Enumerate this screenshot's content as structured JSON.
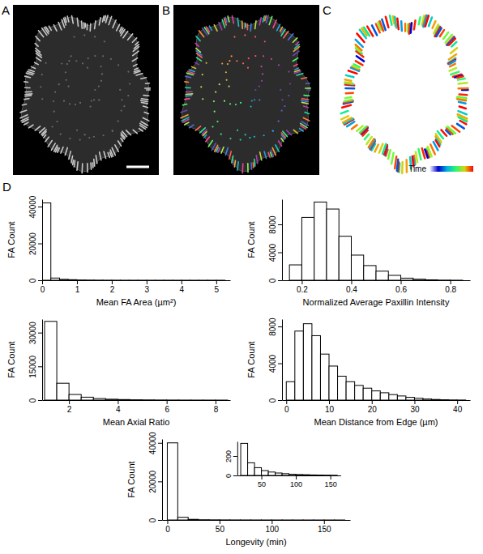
{
  "panels": [
    {
      "label": "A"
    },
    {
      "label": "B"
    },
    {
      "label": "C",
      "colorbar_title": "Time"
    },
    {
      "label": "D"
    }
  ],
  "chart_data": [
    {
      "type": "histogram",
      "x_label": "Mean FA Area (µm²)",
      "y_label": "FA Count",
      "color": "#ffffff",
      "bins": [
        0,
        0.25,
        0.5,
        0.75,
        1,
        1.25,
        1.5,
        1.75,
        2,
        2.25,
        2.5,
        2.75,
        3,
        3.25,
        3.5,
        3.75,
        4,
        4.25,
        4.5,
        4.75,
        5,
        5.25
      ],
      "values": [
        42000,
        1200,
        500,
        300,
        150,
        100,
        60,
        40,
        30,
        20,
        15,
        10,
        8,
        5,
        4,
        3,
        2,
        2,
        1,
        1,
        1
      ],
      "xlim": [
        0,
        5.4
      ],
      "ylim": [
        0,
        44000
      ],
      "xticks": [
        0,
        1,
        2,
        3,
        4,
        5
      ],
      "yticks": [
        0,
        20000,
        40000
      ]
    },
    {
      "type": "histogram",
      "x_label": "Normalized Average Paxillin Intensity",
      "y_label": "FA Count",
      "color": "#ffffff",
      "bins": [
        0.15,
        0.2,
        0.25,
        0.3,
        0.35,
        0.4,
        0.45,
        0.5,
        0.55,
        0.6,
        0.65,
        0.7,
        0.75,
        0.8,
        0.85
      ],
      "values": [
        2200,
        9000,
        11200,
        10200,
        6300,
        3600,
        2100,
        1300,
        700,
        300,
        150,
        60,
        20,
        5
      ],
      "xlim": [
        0.12,
        0.88
      ],
      "ylim": [
        0,
        11600
      ],
      "xticks": [
        0.2,
        0.4,
        0.6,
        0.8
      ],
      "yticks": [
        0,
        4000,
        8000
      ]
    },
    {
      "type": "histogram",
      "x_label": "Mean Axial Ratio",
      "y_label": "FA Count",
      "color": "#ffffff",
      "bins": [
        1,
        1.5,
        2,
        2.5,
        3,
        3.5,
        4,
        4.5,
        5,
        5.5,
        6,
        6.5,
        7,
        7.5,
        8,
        8.5
      ],
      "values": [
        35000,
        7500,
        2500,
        1300,
        700,
        400,
        250,
        150,
        100,
        60,
        40,
        25,
        15,
        10,
        6
      ],
      "xlim": [
        0.9,
        8.6
      ],
      "ylim": [
        0,
        36000
      ],
      "xticks": [
        2,
        4,
        6,
        8
      ],
      "yticks": [
        0,
        15000,
        30000
      ]
    },
    {
      "type": "histogram",
      "x_label": "Mean Distance from Edge (µm)",
      "y_label": "FA Count",
      "color": "#ffffff",
      "bins": [
        0,
        2,
        4,
        6,
        8,
        10,
        12,
        14,
        16,
        18,
        20,
        22,
        24,
        26,
        28,
        30,
        32,
        34,
        36,
        38,
        40,
        42
      ],
      "values": [
        2000,
        7500,
        8300,
        7000,
        5000,
        3700,
        2600,
        2000,
        1600,
        1300,
        1000,
        800,
        600,
        450,
        300,
        200,
        120,
        70,
        40,
        20,
        10
      ],
      "xlim": [
        -1,
        43
      ],
      "ylim": [
        0,
        8800
      ],
      "xticks": [
        0,
        10,
        20,
        30,
        40
      ],
      "yticks": [
        0,
        4000,
        8000
      ]
    },
    {
      "type": "histogram",
      "x_label": "Longevity (min)",
      "y_label": "FA Count",
      "color": "#ffffff",
      "bins": [
        0,
        10,
        20,
        30,
        40,
        50,
        60,
        70,
        80,
        90,
        100,
        110,
        120,
        130,
        140,
        150,
        160,
        170
      ],
      "values": [
        40000,
        1400,
        330,
        130,
        80,
        50,
        35,
        25,
        18,
        12,
        9,
        7,
        5,
        4,
        3,
        2,
        1
      ],
      "xlim": [
        -5,
        175
      ],
      "ylim": [
        0,
        42000
      ],
      "xticks": [
        0,
        50,
        100,
        150
      ],
      "yticks": [
        0,
        20000,
        40000
      ],
      "inset": {
        "type": "histogram",
        "color": "#ffffff",
        "bins": [
          20,
          30,
          40,
          50,
          60,
          70,
          80,
          90,
          100,
          110,
          120,
          130,
          140,
          150,
          160
        ],
        "values": [
          330,
          130,
          80,
          50,
          35,
          25,
          18,
          12,
          9,
          7,
          5,
          4,
          3,
          2
        ],
        "xlim": [
          15,
          165
        ],
        "ylim": [
          0,
          350
        ],
        "xticks": [
          50,
          100,
          150
        ],
        "yticks": [
          0,
          200
        ]
      }
    }
  ]
}
